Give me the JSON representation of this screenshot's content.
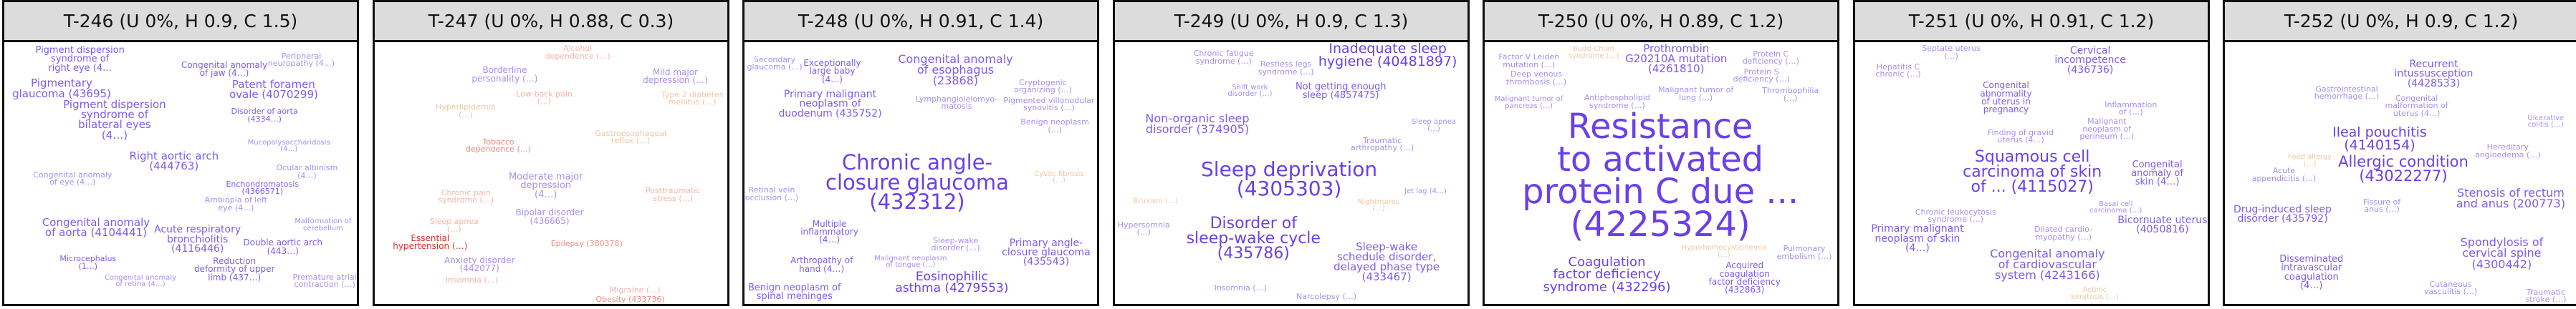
{
  "colors": {
    "strong_purple": "#6a40e8",
    "mid_purple": "#7c5cf0",
    "light_purple": "#a78ef5",
    "strong_red": "#e0302a",
    "light_red": "#f08a7c",
    "faint_red": "#f6b4a8",
    "faint_orange": "#f1c6a0",
    "header_bg": "#dcdcdc",
    "border": "#111111"
  },
  "panels": [
    {
      "title": "T-246 (U 0%, H 0.9, C 1.5)",
      "terms": [
        {
          "text": "Pigment dispersion\nsyndrome of\nright eye (4…",
          "color": "mid_purple",
          "size": 13
        },
        {
          "text": "Right aortic arch\n(444763)",
          "color": "mid_purple",
          "size": 15
        },
        {
          "text": "Pigment dispersion\nsyndrome of\nbilateral eyes\n(4…)",
          "color": "mid_purple",
          "size": 15
        },
        {
          "text": "Pigmentary\nglaucoma (43695)",
          "color": "mid_purple",
          "size": 15
        },
        {
          "text": "Patent foramen\novale (4070299)",
          "color": "mid_purple",
          "size": 15
        },
        {
          "text": "Congenital anomaly\nof aorta (4104441)",
          "color": "mid_purple",
          "size": 15
        },
        {
          "text": "Acute respiratory\nbronchiolitis\n(4116446)",
          "color": "mid_purple",
          "size": 14
        },
        {
          "text": "Reduction\ndeformity of upper\nlimb (437…)",
          "color": "mid_purple",
          "size": 12
        },
        {
          "text": "Double aortic arch\n(443…)",
          "color": "mid_purple",
          "size": 12
        },
        {
          "text": "Congenital anomaly\nof jaw (4…)",
          "color": "mid_purple",
          "size": 12
        },
        {
          "text": "Microcephalus\n(1…)",
          "color": "mid_purple",
          "size": 11
        },
        {
          "text": "Enchondromatosis\n(4366571)",
          "color": "mid_purple",
          "size": 11
        },
        {
          "text": "Disorder of aorta\n(4334…)",
          "color": "mid_purple",
          "size": 11
        },
        {
          "text": "Ocular albinism\n(4…)",
          "color": "light_purple",
          "size": 11
        },
        {
          "text": "Peripheral\nneuropathy (4…)",
          "color": "light_purple",
          "size": 11
        },
        {
          "text": "Congenital anomaly\nof eye (4…)",
          "color": "light_purple",
          "size": 11
        },
        {
          "text": "Premature atrial\ncontraction (…)",
          "color": "light_purple",
          "size": 11
        },
        {
          "text": "Ambiopia of left\neye (4…)",
          "color": "light_purple",
          "size": 11
        },
        {
          "text": "Congenital anomaly\nof retina (4…)",
          "color": "light_purple",
          "size": 10
        },
        {
          "text": "Mucopolysaccharidosis\n(4…)",
          "color": "light_purple",
          "size": 10
        },
        {
          "text": "Malformation of\ncerebellum",
          "color": "light_purple",
          "size": 10
        }
      ]
    },
    {
      "title": "T-247 (U 0%, H 0.88, C 0.3)",
      "terms": [
        {
          "text": "Epilepsy (380378)",
          "color": "light_red",
          "size": 11
        },
        {
          "text": "Chronic pain\nsyndrome (…)",
          "color": "faint_red",
          "size": 11
        },
        {
          "text": "Moderate major\ndepression\n(4…)",
          "color": "light_purple",
          "size": 13
        },
        {
          "text": "Mild major\ndepression (…)",
          "color": "light_purple",
          "size": 12
        },
        {
          "text": "Borderline\npersonality (…)",
          "color": "light_purple",
          "size": 12
        },
        {
          "text": "Bipolar disorder\n(436665)",
          "color": "light_purple",
          "size": 12
        },
        {
          "text": "Anxiety disorder\n(442077)",
          "color": "light_purple",
          "size": 12
        },
        {
          "text": "Essential\nhypertension (…)",
          "color": "strong_red",
          "size": 12
        },
        {
          "text": "Obesity (433736)",
          "color": "light_red",
          "size": 11
        },
        {
          "text": "Tobacco\ndependence (…)",
          "color": "light_red",
          "size": 11
        },
        {
          "text": "Alcohol\ndependence (…)",
          "color": "faint_red",
          "size": 11
        },
        {
          "text": "Posttraumatic\nstress (…)",
          "color": "faint_red",
          "size": 11
        },
        {
          "text": "Insomnia (…)",
          "color": "faint_red",
          "size": 11
        },
        {
          "text": "Sleep apnea\n(…)",
          "color": "faint_red",
          "size": 11
        },
        {
          "text": "Migraine (…)",
          "color": "faint_red",
          "size": 11
        },
        {
          "text": "Hyperlipidemia\n(…)",
          "color": "faint_orange",
          "size": 11
        },
        {
          "text": "Type 2 diabetes\nmellitus (…)",
          "color": "faint_orange",
          "size": 11
        },
        {
          "text": "Gastroesophageal\nreflux (…)",
          "color": "faint_orange",
          "size": 11
        },
        {
          "text": "Low back pain\n(…)",
          "color": "faint_red",
          "size": 11
        }
      ]
    },
    {
      "title": "T-248 (U 0%, H 0.91, C 1.4)",
      "terms": [
        {
          "text": "Chronic angle-\nclosure glaucoma\n(432312)",
          "color": "strong_purple",
          "size": 29
        },
        {
          "text": "Congenital anomaly\nof esophagus\n(23868)",
          "color": "mid_purple",
          "size": 16
        },
        {
          "text": "Primary malignant\nneoplasm of\nduodenum (435752)",
          "color": "mid_purple",
          "size": 14
        },
        {
          "text": "Eosinophilic\nasthma (4279553)",
          "color": "strong_purple",
          "size": 17
        },
        {
          "text": "Benign neoplasm of\nspinal meninges",
          "color": "mid_purple",
          "size": 13
        },
        {
          "text": "Primary angle-\nclosure glaucoma\n(435543)",
          "color": "mid_purple",
          "size": 14
        },
        {
          "text": "Arthropathy of\nhand (4…)",
          "color": "mid_purple",
          "size": 12
        },
        {
          "text": "Multiple\ninflammatory\n(4…)",
          "color": "mid_purple",
          "size": 12
        },
        {
          "text": "Exceptionally\nlarge baby\n(4…)",
          "color": "mid_purple",
          "size": 12
        },
        {
          "text": "Sleep-wake\ndisorder (…)",
          "color": "light_purple",
          "size": 11
        },
        {
          "text": "Secondary\nglaucoma (…)",
          "color": "light_purple",
          "size": 11
        },
        {
          "text": "Lymphangioleiomyo-\nmatosis",
          "color": "light_purple",
          "size": 11
        },
        {
          "text": "Cryptogenic\norganizing (…)",
          "color": "light_purple",
          "size": 11
        },
        {
          "text": "Pigmented villonodular\nsynovitis (…)",
          "color": "light_purple",
          "size": 11
        },
        {
          "text": "Retinal vein\nocclusion (…)",
          "color": "light_purple",
          "size": 11
        },
        {
          "text": "Benign neoplasm\n(…)",
          "color": "light_purple",
          "size": 11
        },
        {
          "text": "Malignant neoplasm\nof tongue (…)",
          "color": "light_purple",
          "size": 10
        },
        {
          "text": "Cystic fibrosis\n(…)",
          "color": "faint_orange",
          "size": 10
        }
      ]
    },
    {
      "title": "T-249 (U 0%, H 0.9, C 1.3)",
      "terms": [
        {
          "text": "Sleep deprivation\n(4305303)",
          "color": "strong_purple",
          "size": 28
        },
        {
          "text": "Disorder of\nsleep-wake cycle\n(435786)",
          "color": "strong_purple",
          "size": 22
        },
        {
          "text": "Non-organic sleep\ndisorder (374905)",
          "color": "mid_purple",
          "size": 16
        },
        {
          "text": "Inadequate sleep\nhygiene (40481897)",
          "color": "strong_purple",
          "size": 19
        },
        {
          "text": "Sleep-wake\nschedule disorder,\ndelayed phase type\n(433467)",
          "color": "mid_purple",
          "size": 15
        },
        {
          "text": "Not getting enough\nsleep (4857475)",
          "color": "mid_purple",
          "size": 13
        },
        {
          "text": "Traumatic\narthropathy (…)",
          "color": "light_purple",
          "size": 11
        },
        {
          "text": "Chronic fatigue\nsyndrome (…)",
          "color": "light_purple",
          "size": 11
        },
        {
          "text": "Insomnia (…)",
          "color": "light_purple",
          "size": 11
        },
        {
          "text": "Hypersomnia\n(…)",
          "color": "light_purple",
          "size": 11
        },
        {
          "text": "Narcolepsy (…)",
          "color": "light_purple",
          "size": 11
        },
        {
          "text": "Restless legs\nsyndrome (…)",
          "color": "light_purple",
          "size": 11
        },
        {
          "text": "Jet lag (4…)",
          "color": "light_purple",
          "size": 10
        },
        {
          "text": "Shift work\ndisorder (…)",
          "color": "light_purple",
          "size": 10
        },
        {
          "text": "Sleep apnea\n(…)",
          "color": "light_purple",
          "size": 10
        },
        {
          "text": "Nightmares\n(…)",
          "color": "faint_orange",
          "size": 10
        },
        {
          "text": "Bruxism (…)",
          "color": "faint_orange",
          "size": 10
        }
      ]
    },
    {
      "title": "T-250 (U 0%, H 0.89, C 1.2)",
      "terms": [
        {
          "text": "Resistance\nto activated\nprotein C due ...\n(4225324)",
          "color": "strong_purple",
          "size": 48
        },
        {
          "text": "Coagulation\nfactor deficiency\nsyndrome (432296)",
          "color": "strong_purple",
          "size": 18
        },
        {
          "text": "Prothrombin\nG20210A mutation\n(4261810)",
          "color": "mid_purple",
          "size": 15
        },
        {
          "text": "Acquired\ncoagulation\nfactor deficiency\n(432863)",
          "color": "mid_purple",
          "size": 12
        },
        {
          "text": "Malignant tumor of\nlung (…)",
          "color": "light_purple",
          "size": 11
        },
        {
          "text": "Factor V Leiden\nmutation (…)",
          "color": "light_purple",
          "size": 11
        },
        {
          "text": "Deep venous\nthrombosis (…)",
          "color": "light_purple",
          "size": 11
        },
        {
          "text": "Pulmonary\nembolism (…)",
          "color": "light_purple",
          "size": 11
        },
        {
          "text": "Antiphospholipid\nsyndrome (…)",
          "color": "light_purple",
          "size": 11
        },
        {
          "text": "Protein S\ndeficiency (…)",
          "color": "light_purple",
          "size": 11
        },
        {
          "text": "Protein C\ndeficiency (…)",
          "color": "light_purple",
          "size": 11
        },
        {
          "text": "Thrombophilia\n(…)",
          "color": "light_purple",
          "size": 11
        },
        {
          "text": "Malignant tumor of\npancreas (…)",
          "color": "light_purple",
          "size": 10
        },
        {
          "text": "Hyperhomocysteinemia\n(…)",
          "color": "faint_orange",
          "size": 10
        },
        {
          "text": "Budd-Chiari\nsyndrome (…)",
          "color": "faint_orange",
          "size": 10
        }
      ]
    },
    {
      "title": "T-251 (U 0%, H 0.91, C 1.2)",
      "terms": [
        {
          "text": "Squamous cell\ncarcinoma of skin\nof ... (4115027)",
          "color": "strong_purple",
          "size": 22
        },
        {
          "text": "Congenital anomaly\nof cardiovascular\nsystem (4243166)",
          "color": "mid_purple",
          "size": 16
        },
        {
          "text": "Primary malignant\nneoplasm of skin\n(4…)",
          "color": "mid_purple",
          "size": 14
        },
        {
          "text": "Bicornuate uterus\n(4050816)",
          "color": "mid_purple",
          "size": 14
        },
        {
          "text": "Congenital\nanomaly of\nskin (4…)",
          "color": "mid_purple",
          "size": 13
        },
        {
          "text": "Cervical\nincompetence\n(436736)",
          "color": "mid_purple",
          "size": 14
        },
        {
          "text": "Congenital\nabnormality\nof uterus in\npregnancy",
          "color": "mid_purple",
          "size": 12
        },
        {
          "text": "Finding of gravid\nuterus (4…)",
          "color": "light_purple",
          "size": 11
        },
        {
          "text": "Chronic leukocytosis\nsyndrome (…)",
          "color": "light_purple",
          "size": 11
        },
        {
          "text": "Malignant\nneoplasm of\nperineum (…)",
          "color": "light_purple",
          "size": 11
        },
        {
          "text": "Dilated cardio-\nmyopathy (…)",
          "color": "light_purple",
          "size": 11
        },
        {
          "text": "Hepatitis C\nchronic (…)",
          "color": "light_purple",
          "size": 11
        },
        {
          "text": "Inflammation\nof (…)",
          "color": "light_purple",
          "size": 11
        },
        {
          "text": "Septate uterus\n(…)",
          "color": "light_purple",
          "size": 11
        },
        {
          "text": "Basal cell\ncarcinoma (…)",
          "color": "light_purple",
          "size": 10
        },
        {
          "text": "Actinic\nkeratosis (…)",
          "color": "faint_orange",
          "size": 10
        }
      ]
    },
    {
      "title": "T-252 (U 0%, H 0.9, C 1.2)",
      "terms": [
        {
          "text": "Allergic condition\n(43022277)",
          "color": "strong_purple",
          "size": 21
        },
        {
          "text": "Spondylosis of\ncervical spine\n(4300442)",
          "color": "mid_purple",
          "size": 16
        },
        {
          "text": "Stenosis of rectum\nand anus (200773)",
          "color": "mid_purple",
          "size": 16
        },
        {
          "text": "Ileal pouchitis\n(4140154)",
          "color": "strong_purple",
          "size": 19
        },
        {
          "text": "Recurrent\nintussusception\n(4428533)",
          "color": "mid_purple",
          "size": 14
        },
        {
          "text": "Disseminated\nintravascular\ncoagulation\n(4…)",
          "color": "mid_purple",
          "size": 13
        },
        {
          "text": "Drug-induced sleep\ndisorder (435792)",
          "color": "mid_purple",
          "size": 14
        },
        {
          "text": "Congenital\nmalformation of\nuterus (4…)",
          "color": "light_purple",
          "size": 11
        },
        {
          "text": "Hereditary\nangioedema (…)",
          "color": "light_purple",
          "size": 11
        },
        {
          "text": "Traumatic\nstroke (…)",
          "color": "light_purple",
          "size": 11
        },
        {
          "text": "Gastrointestinal\nhemorrhage (…)",
          "color": "light_purple",
          "size": 11
        },
        {
          "text": "Fissure of\nanus (…)",
          "color": "light_purple",
          "size": 11
        },
        {
          "text": "Cutaneous\nvasculitis (…)",
          "color": "light_purple",
          "size": 11
        },
        {
          "text": "Acute\nappendicitis (…)",
          "color": "light_purple",
          "size": 11
        },
        {
          "text": "Ulcerative\ncolitis (…)",
          "color": "light_purple",
          "size": 10
        },
        {
          "text": "Food allergy\n(…)",
          "color": "faint_orange",
          "size": 10
        }
      ]
    }
  ]
}
